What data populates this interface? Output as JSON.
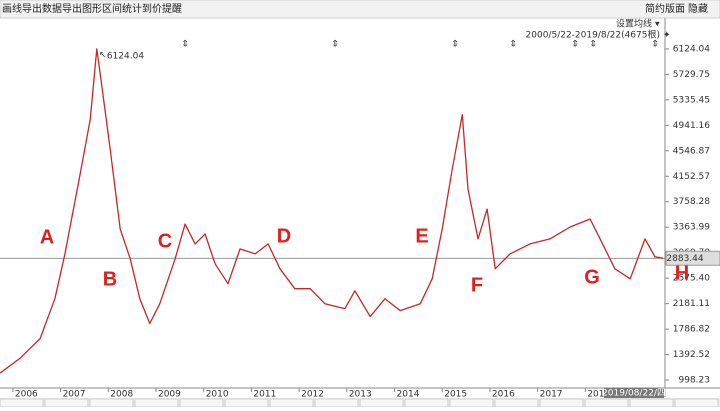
{
  "toolbar": {
    "items": [
      "画线",
      "导出数据",
      "导出图形",
      "区间统计",
      "到价提醒"
    ],
    "right": [
      "简约版面",
      "隐藏"
    ]
  },
  "chart_data": {
    "type": "line",
    "settings_label": "设置均线",
    "range_label": "2000/5/22-2019/8/22(4675根)",
    "x": [
      2005.73,
      2006.15,
      2006.57,
      2006.88,
      2007.09,
      2007.41,
      2007.62,
      2007.76,
      2007.89,
      2008.04,
      2008.25,
      2008.46,
      2008.66,
      2008.87,
      2009.08,
      2009.4,
      2009.61,
      2009.82,
      2010.03,
      2010.24,
      2010.51,
      2010.76,
      2011.08,
      2011.35,
      2011.6,
      2011.91,
      2012.23,
      2012.54,
      2012.96,
      2013.17,
      2013.49,
      2013.8,
      2014.12,
      2014.54,
      2014.79,
      2015.0,
      2015.21,
      2015.42,
      2015.54,
      2015.75,
      2015.94,
      2016.11,
      2016.42,
      2016.84,
      2017.26,
      2017.68,
      2018.1,
      2018.31,
      2018.62,
      2018.94,
      2019.25,
      2019.46,
      2019.63
    ],
    "series": [
      {
        "color": "#c62828",
        "values": [
          1105,
          1335,
          1640,
          2258,
          2950,
          4184,
          5030,
          6124.04,
          5416,
          4569,
          3337,
          2875,
          2258,
          1874,
          2180,
          2875,
          3413,
          3105,
          3259,
          2798,
          2490,
          3028,
          2951,
          3105,
          2720,
          2412,
          2412,
          2180,
          2104,
          2380,
          1980,
          2258,
          2073,
          2180,
          2566,
          3337,
          4260,
          5108,
          3952,
          3183,
          3645,
          2720,
          2951,
          3105,
          3183,
          3367,
          3491,
          3183,
          2720,
          2566,
          3183,
          2906,
          2883.44
        ]
      }
    ],
    "xlim": [
      2005.73,
      2019.67
    ],
    "ylim": [
      875,
      6417
    ],
    "xticks": [
      2006,
      2007,
      2008,
      2009,
      2010,
      2011,
      2012,
      2013,
      2014,
      2015,
      2016,
      2017,
      2018
    ],
    "yticks": [
      6124.04,
      5729.75,
      5335.45,
      4941.16,
      4546.87,
      4152.57,
      3758.28,
      3363.99,
      {
        "value": 2969.7,
        "label": "2969.70"
      },
      {
        "value": 2575.4,
        "label": "2575.40"
      },
      2181.11,
      1786.82,
      1392.52,
      998.23
    ],
    "peak_label": 6124.04,
    "last_price": 2883.44,
    "date_label": "2019/08/22/四",
    "letters": [
      "A",
      "B",
      "C",
      "D",
      "E",
      "F",
      "G",
      "H"
    ]
  }
}
